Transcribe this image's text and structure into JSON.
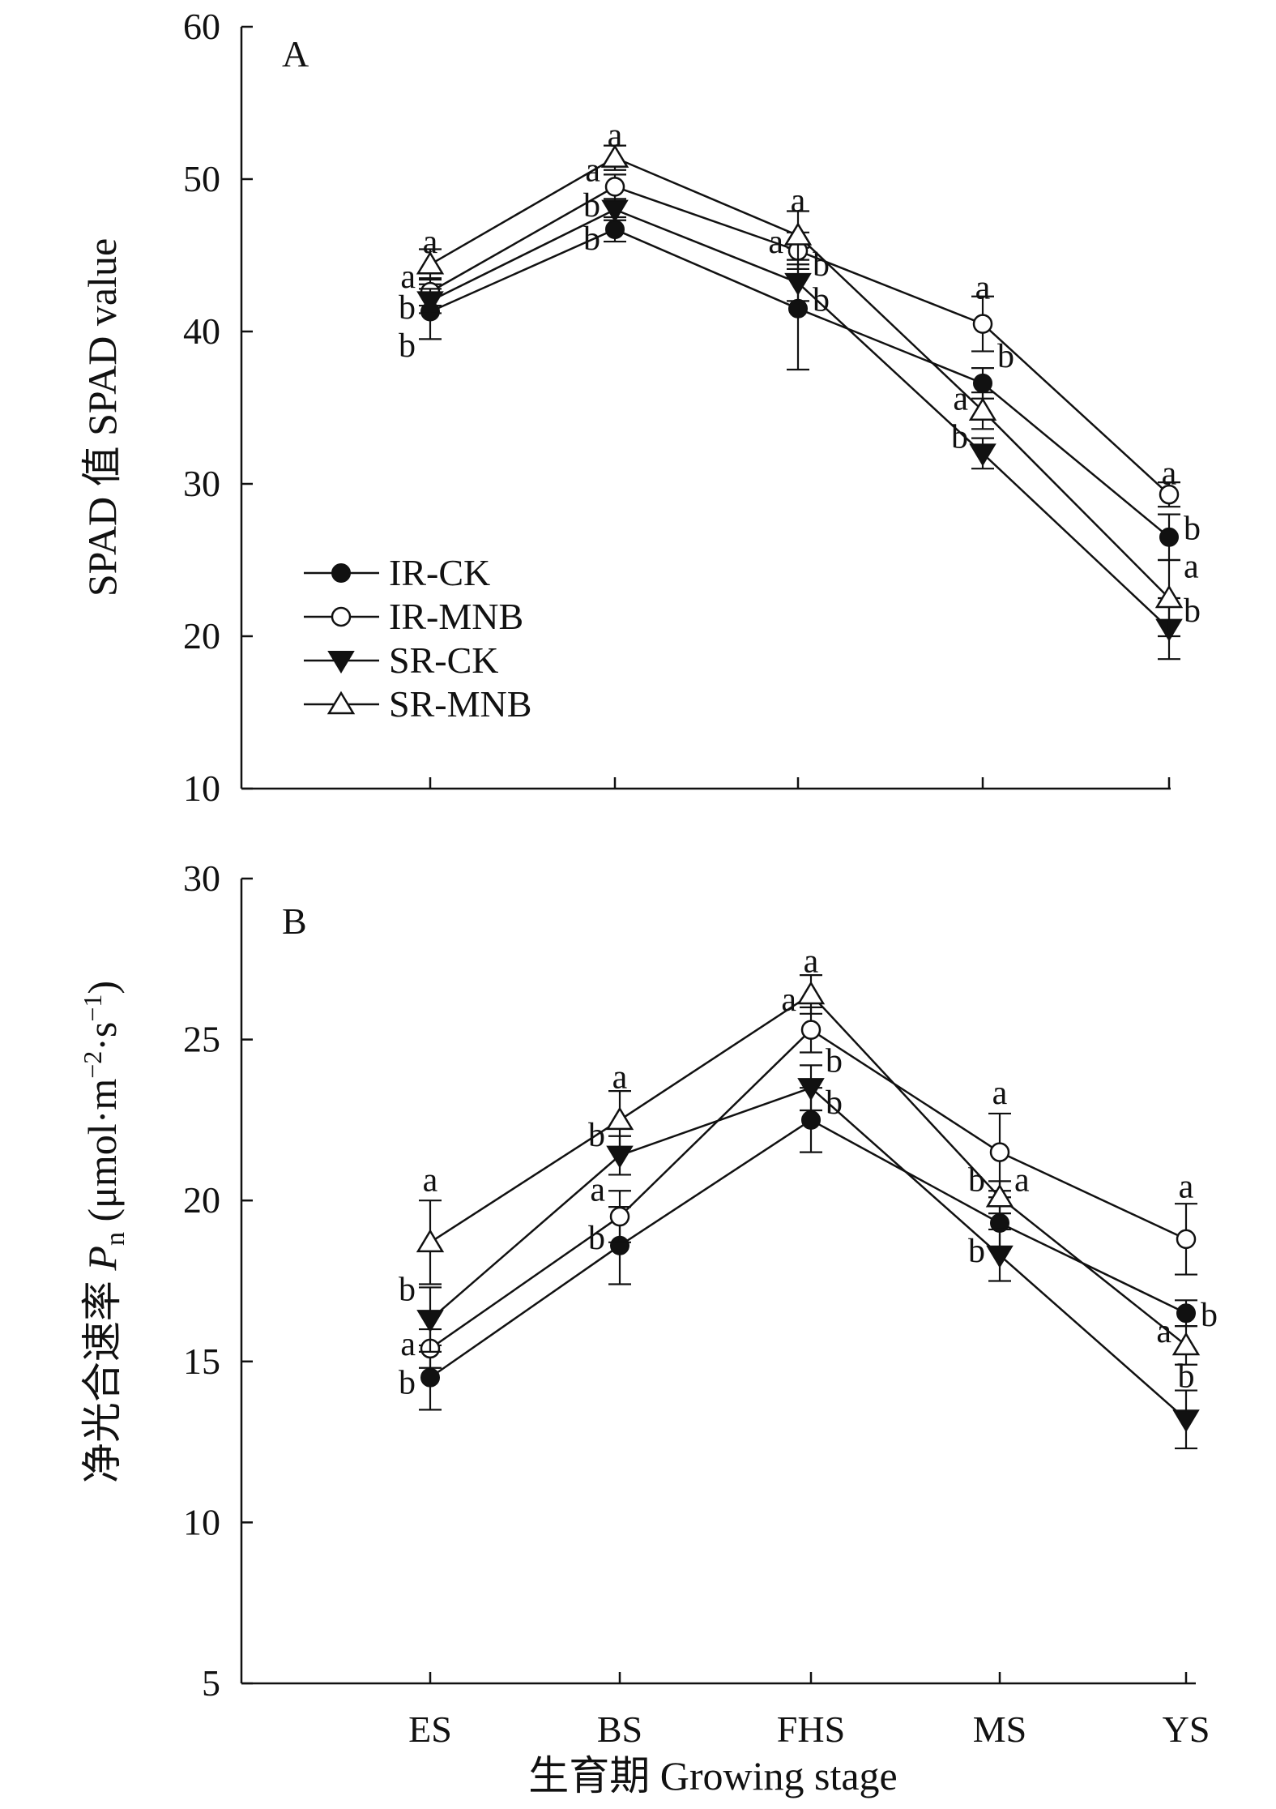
{
  "chart_data": [
    {
      "type": "line",
      "panel_label": "A",
      "ylabel": "SPAD 值 SPAD value",
      "xlabel": "",
      "ylim": [
        10,
        60
      ],
      "yticks": [
        10,
        20,
        30,
        40,
        50,
        60
      ],
      "categories": [
        "ES",
        "BS",
        "FHS",
        "MS",
        "YS"
      ],
      "legend_position": "lower-left",
      "grid": false,
      "series": [
        {
          "name": "IR-CK",
          "marker": "filled-circle",
          "values": [
            41.3,
            46.7,
            41.5,
            36.6,
            26.5
          ],
          "errors": [
            1.8,
            0.8,
            4.0,
            1.0,
            1.5
          ],
          "sig": [
            "b",
            "b",
            "b",
            "",
            ""
          ]
        },
        {
          "name": "IR-MNB",
          "marker": "open-circle",
          "values": [
            42.6,
            49.5,
            45.3,
            40.5,
            29.3
          ],
          "errors": [
            0.9,
            0.8,
            1.2,
            1.8,
            0.8
          ],
          "sig": [
            "b",
            "b",
            "a",
            "a",
            "a"
          ]
        },
        {
          "name": "SR-CK",
          "marker": "filled-triangle-down",
          "values": [
            42.0,
            48.0,
            43.2,
            32.0,
            20.5
          ],
          "errors": [
            0.8,
            0.7,
            1.2,
            1.0,
            2.0
          ],
          "sig": [
            "b",
            "b",
            "b",
            "b",
            "b"
          ]
        },
        {
          "name": "SR-MNB",
          "marker": "open-triangle-up",
          "values": [
            44.4,
            51.4,
            46.3,
            34.8,
            22.5
          ],
          "errors": [
            1.0,
            0.8,
            1.6,
            1.2,
            2.5
          ],
          "sig": [
            "a",
            "a",
            "a",
            "a",
            "a"
          ]
        }
      ],
      "sig_labels": [
        {
          "x": "ES",
          "y": 45.8,
          "text": "a",
          "side": "center"
        },
        {
          "x": "ES",
          "y": 43.5,
          "text": "a",
          "side": "left"
        },
        {
          "x": "ES",
          "y": 41.5,
          "text": "b",
          "side": "left"
        },
        {
          "x": "ES",
          "y": 39.0,
          "text": "b",
          "side": "left"
        },
        {
          "x": "BS",
          "y": 52.8,
          "text": "a",
          "side": "center"
        },
        {
          "x": "BS",
          "y": 50.5,
          "text": "a",
          "side": "left"
        },
        {
          "x": "BS",
          "y": 48.2,
          "text": "b",
          "side": "left"
        },
        {
          "x": "BS",
          "y": 46.0,
          "text": "b",
          "side": "left"
        },
        {
          "x": "FHS",
          "y": 48.5,
          "text": "a",
          "side": "center"
        },
        {
          "x": "FHS",
          "y": 45.8,
          "text": "a",
          "side": "left"
        },
        {
          "x": "FHS",
          "y": 44.3,
          "text": "b",
          "side": "right"
        },
        {
          "x": "FHS",
          "y": 42.0,
          "text": "b",
          "side": "right"
        },
        {
          "x": "MS",
          "y": 42.8,
          "text": "a",
          "side": "center"
        },
        {
          "x": "MS",
          "y": 38.3,
          "text": "b",
          "side": "right"
        },
        {
          "x": "MS",
          "y": 35.5,
          "text": "a",
          "side": "left"
        },
        {
          "x": "MS",
          "y": 33.0,
          "text": "b",
          "side": "left"
        },
        {
          "x": "YS",
          "y": 30.6,
          "text": "a",
          "side": "center"
        },
        {
          "x": "YS",
          "y": 27.0,
          "text": "b",
          "side": "right"
        },
        {
          "x": "YS",
          "y": 24.5,
          "text": "a",
          "side": "right"
        },
        {
          "x": "YS",
          "y": 21.6,
          "text": "b",
          "side": "right"
        }
      ]
    },
    {
      "type": "line",
      "panel_label": "B",
      "ylabel_main": "净光合速率 ",
      "ylabel_var": "P",
      "ylabel_sub": "n",
      "ylabel_unit_pre": " (μmol·m",
      "ylabel_sup1": "−2",
      "ylabel_unit_mid": "·s",
      "ylabel_sup2": "−1",
      "ylabel_unit_post": ")",
      "xlabel": "生育期 Growing stage",
      "ylim": [
        5,
        30
      ],
      "yticks": [
        5,
        10,
        15,
        20,
        25,
        30
      ],
      "categories": [
        "ES",
        "BS",
        "FHS",
        "MS",
        "YS"
      ],
      "grid": false,
      "series": [
        {
          "name": "IR-CK",
          "marker": "filled-circle",
          "values": [
            14.5,
            18.6,
            22.5,
            19.3,
            16.5
          ],
          "errors": [
            1.0,
            1.2,
            1.0,
            0.8,
            0.4
          ]
        },
        {
          "name": "IR-MNB",
          "marker": "open-circle",
          "values": [
            15.4,
            19.5,
            25.3,
            21.5,
            18.8
          ],
          "errors": [
            0.6,
            0.8,
            0.7,
            1.2,
            1.1
          ]
        },
        {
          "name": "SR-CK",
          "marker": "filled-triangle-down",
          "values": [
            16.3,
            21.4,
            23.5,
            18.3,
            13.2
          ],
          "errors": [
            1.0,
            0.6,
            0.7,
            0.8,
            0.9
          ]
        },
        {
          "name": "SR-MNB",
          "marker": "open-triangle-up",
          "values": [
            18.7,
            22.5,
            26.4,
            20.1,
            15.5
          ],
          "errors": [
            1.3,
            0.9,
            0.6,
            0.5,
            0.6
          ]
        }
      ],
      "sig_labels": [
        {
          "x": "ES",
          "y": 20.6,
          "text": "a",
          "side": "center"
        },
        {
          "x": "ES",
          "y": 17.2,
          "text": "b",
          "side": "left"
        },
        {
          "x": "ES",
          "y": 15.5,
          "text": "a",
          "side": "left"
        },
        {
          "x": "ES",
          "y": 14.3,
          "text": "b",
          "side": "left"
        },
        {
          "x": "BS",
          "y": 23.8,
          "text": "a",
          "side": "center"
        },
        {
          "x": "BS",
          "y": 22.0,
          "text": "b",
          "side": "left"
        },
        {
          "x": "BS",
          "y": 20.3,
          "text": "a",
          "side": "left"
        },
        {
          "x": "BS",
          "y": 18.8,
          "text": "b",
          "side": "left"
        },
        {
          "x": "FHS",
          "y": 27.4,
          "text": "a",
          "side": "center"
        },
        {
          "x": "FHS",
          "y": 26.2,
          "text": "a",
          "side": "left"
        },
        {
          "x": "FHS",
          "y": 24.3,
          "text": "b",
          "side": "right"
        },
        {
          "x": "FHS",
          "y": 23.0,
          "text": "b",
          "side": "right"
        },
        {
          "x": "MS",
          "y": 23.3,
          "text": "a",
          "side": "center"
        },
        {
          "x": "MS",
          "y": 20.6,
          "text": "b",
          "side": "left"
        },
        {
          "x": "MS",
          "y": 20.6,
          "text": "a",
          "side": "right"
        },
        {
          "x": "MS",
          "y": 18.4,
          "text": "b",
          "side": "left"
        },
        {
          "x": "YS",
          "y": 20.4,
          "text": "a",
          "side": "center"
        },
        {
          "x": "YS",
          "y": 16.4,
          "text": "b",
          "side": "right"
        },
        {
          "x": "YS",
          "y": 15.9,
          "text": "a",
          "side": "left"
        },
        {
          "x": "YS",
          "y": 14.5,
          "text": "b",
          "side": "center"
        }
      ]
    }
  ]
}
